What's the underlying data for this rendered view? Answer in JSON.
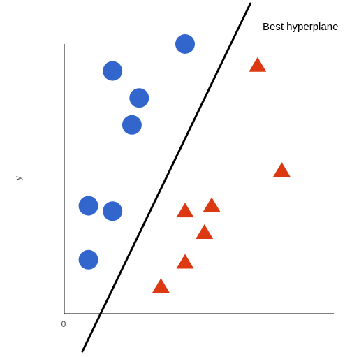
{
  "chart_data": {
    "type": "scatter",
    "title": "",
    "xlabel": "",
    "ylabel": "y",
    "xlim": [
      0,
      10
    ],
    "ylim": [
      0,
      10
    ],
    "x_ticks": [
      {
        "value": 0,
        "label": "0"
      }
    ],
    "grid": false,
    "legend": "none",
    "series": [
      {
        "marker": "circle",
        "color": "#3366cc",
        "points": [
          {
            "x": 5.0,
            "y": 10.0
          },
          {
            "x": 2.0,
            "y": 9.0
          },
          {
            "x": 3.1,
            "y": 8.0
          },
          {
            "x": 2.8,
            "y": 7.0
          },
          {
            "x": 1.0,
            "y": 4.0
          },
          {
            "x": 2.0,
            "y": 3.8
          },
          {
            "x": 1.0,
            "y": 2.0
          }
        ]
      },
      {
        "marker": "triangle",
        "color": "#dc3912",
        "points": [
          {
            "x": 8.0,
            "y": 9.2
          },
          {
            "x": 9.0,
            "y": 5.3
          },
          {
            "x": 5.0,
            "y": 3.8
          },
          {
            "x": 6.1,
            "y": 4.0
          },
          {
            "x": 5.8,
            "y": 3.0
          },
          {
            "x": 5.0,
            "y": 1.9
          },
          {
            "x": 4.0,
            "y": 1.0
          }
        ]
      }
    ],
    "hyperplane": {
      "label": "Best hyperplane",
      "color": "#000000",
      "from": {
        "x": 0.75,
        "y": -1.4
      },
      "to": {
        "x": 7.7,
        "y": 11.5
      }
    }
  }
}
